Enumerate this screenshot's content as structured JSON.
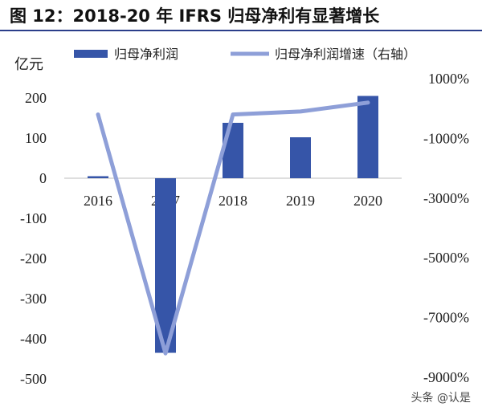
{
  "title": "图 12：2018-20 年 IFRS 归母净利有显著增长",
  "watermark": "头条 @认是",
  "colors": {
    "bar": "#3655a8",
    "line": "#8e9fd8",
    "rule": "#2b3e8a"
  },
  "chart_data": {
    "type": "bar",
    "categories": [
      "2016",
      "2017",
      "2018",
      "2019",
      "2020"
    ],
    "ylabel": "亿元",
    "ylim": [
      -500,
      200
    ],
    "yticks": [
      200,
      100,
      0,
      -100,
      -200,
      -300,
      -400,
      -500
    ],
    "y2lim": [
      -9000,
      1000
    ],
    "y2ticks": [
      "1000%",
      "-1000%",
      "-3000%",
      "-5000%",
      "-7000%",
      "-9000%"
    ],
    "y2tick_values": [
      1000,
      -1000,
      -3000,
      -5000,
      -7000,
      -9000
    ],
    "legend_placement": "top",
    "grid": false,
    "series": [
      {
        "name": "归母净利润",
        "type": "bar",
        "axis": "left",
        "values": [
          5,
          -435,
          138,
          102,
          205
        ]
      },
      {
        "name": "归母净利润增速（右轴）",
        "type": "line",
        "axis": "right",
        "values": [
          -200,
          -8200,
          -200,
          -100,
          200
        ]
      }
    ]
  }
}
